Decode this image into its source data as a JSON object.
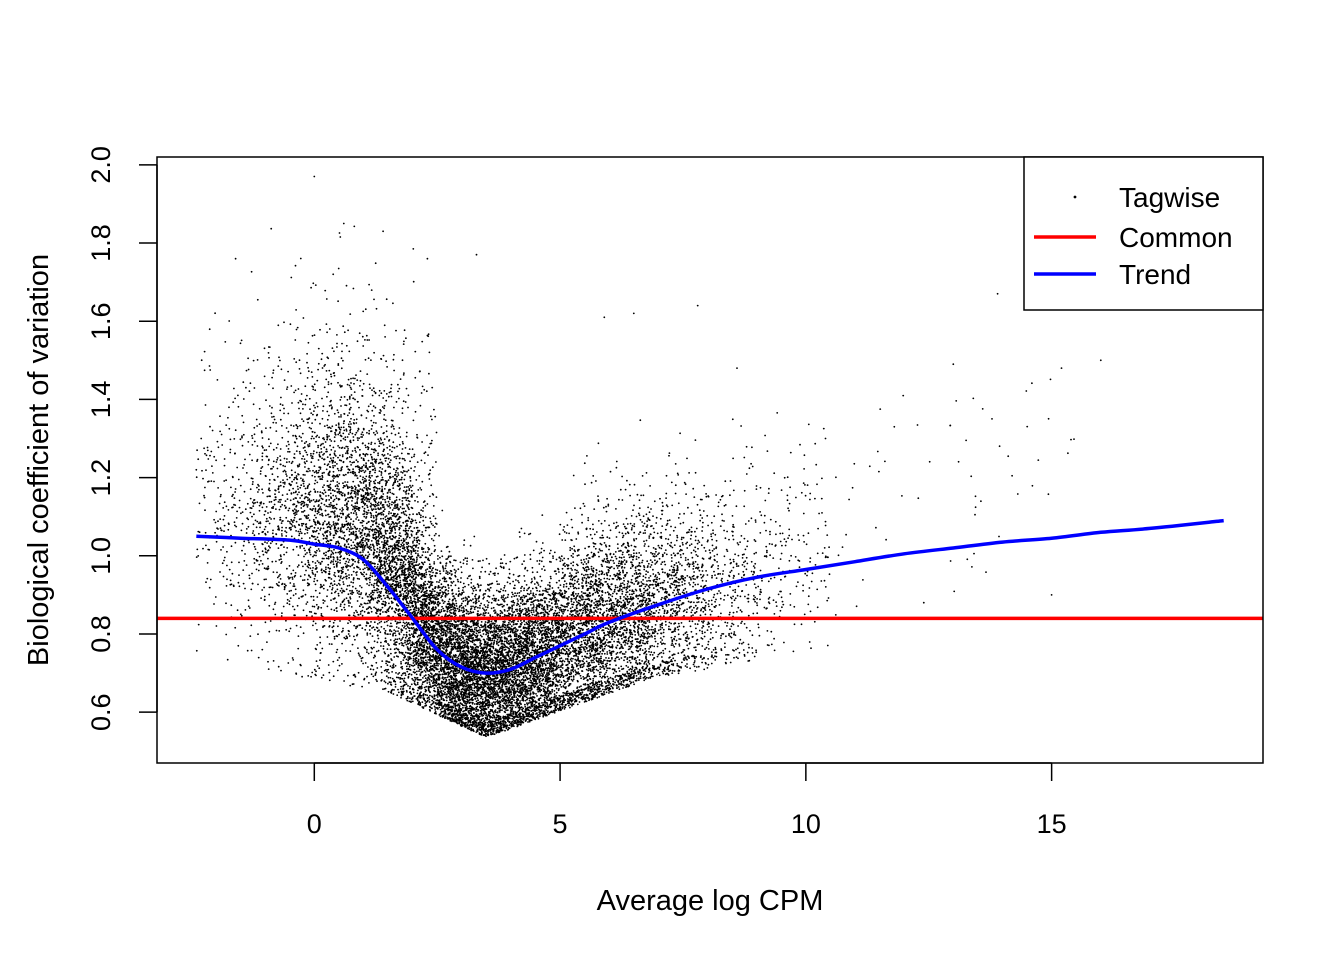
{
  "chart_data": {
    "type": "scatter",
    "title": "",
    "xlabel": "Average log CPM",
    "ylabel": "Biological coefficient of variation",
    "xlim": [
      -3.2,
      19.3
    ],
    "ylim": [
      0.47,
      2.02
    ],
    "x_ticks": [
      0,
      5,
      10,
      15
    ],
    "y_ticks": [
      0.6,
      0.8,
      1.0,
      1.2,
      1.4,
      1.6,
      1.8,
      2.0
    ],
    "x_tick_labels": [
      "0",
      "5",
      "10",
      "15"
    ],
    "y_tick_labels": [
      "0.6",
      "0.8",
      "1.0",
      "1.2",
      "1.4",
      "1.6",
      "1.8",
      "2.0"
    ],
    "grid": false,
    "legend_position": "top-right",
    "legend": {
      "tagwise": "Tagwise",
      "common": "Common",
      "trend": "Trend"
    },
    "series": [
      {
        "name": "Tagwise",
        "kind": "points",
        "color": "#000000",
        "approx_count": 16000,
        "x_range": [
          -2.4,
          16.1
        ],
        "y_range": [
          0.53,
          1.97
        ],
        "density_peak": {
          "x": 3.4,
          "y": 0.6
        },
        "sample_points": [
          {
            "x": -2.4,
            "y": 1.22
          },
          {
            "x": -2.3,
            "y": 1.3
          },
          {
            "x": -1.6,
            "y": 1.76
          },
          {
            "x": 0.0,
            "y": 1.97
          },
          {
            "x": 0.6,
            "y": 1.85
          },
          {
            "x": 1.4,
            "y": 1.83
          },
          {
            "x": 2.3,
            "y": 1.76
          },
          {
            "x": 3.3,
            "y": 1.77
          },
          {
            "x": 5.9,
            "y": 1.61
          },
          {
            "x": 6.5,
            "y": 1.62
          },
          {
            "x": 7.8,
            "y": 1.64
          },
          {
            "x": 8.6,
            "y": 1.48
          },
          {
            "x": 10.4,
            "y": 1.3
          },
          {
            "x": 11.8,
            "y": 1.33
          },
          {
            "x": 13.0,
            "y": 1.49
          },
          {
            "x": 13.9,
            "y": 1.67
          },
          {
            "x": 15.2,
            "y": 1.48
          },
          {
            "x": 16.0,
            "y": 1.5
          },
          {
            "x": 15.0,
            "y": 0.9
          },
          {
            "x": 12.4,
            "y": 0.88
          }
        ]
      },
      {
        "name": "Common",
        "kind": "hline",
        "color": "#ff0000",
        "y": 0.84
      },
      {
        "name": "Trend",
        "kind": "line",
        "color": "#0000ff",
        "x": [
          -2.4,
          -1.5,
          -0.5,
          0.0,
          0.5,
          1.0,
          1.5,
          2.0,
          2.5,
          3.0,
          3.5,
          4.0,
          4.5,
          5.0,
          5.5,
          6.0,
          7.0,
          8.0,
          9.0,
          10.0,
          11.0,
          12.0,
          13.0,
          14.0,
          15.0,
          16.0,
          17.0,
          18.5
        ],
        "y": [
          1.05,
          1.045,
          1.04,
          1.03,
          1.02,
          0.99,
          0.92,
          0.84,
          0.76,
          0.715,
          0.7,
          0.71,
          0.74,
          0.77,
          0.8,
          0.83,
          0.875,
          0.915,
          0.945,
          0.965,
          0.985,
          1.005,
          1.02,
          1.035,
          1.045,
          1.06,
          1.07,
          1.09
        ]
      }
    ]
  }
}
